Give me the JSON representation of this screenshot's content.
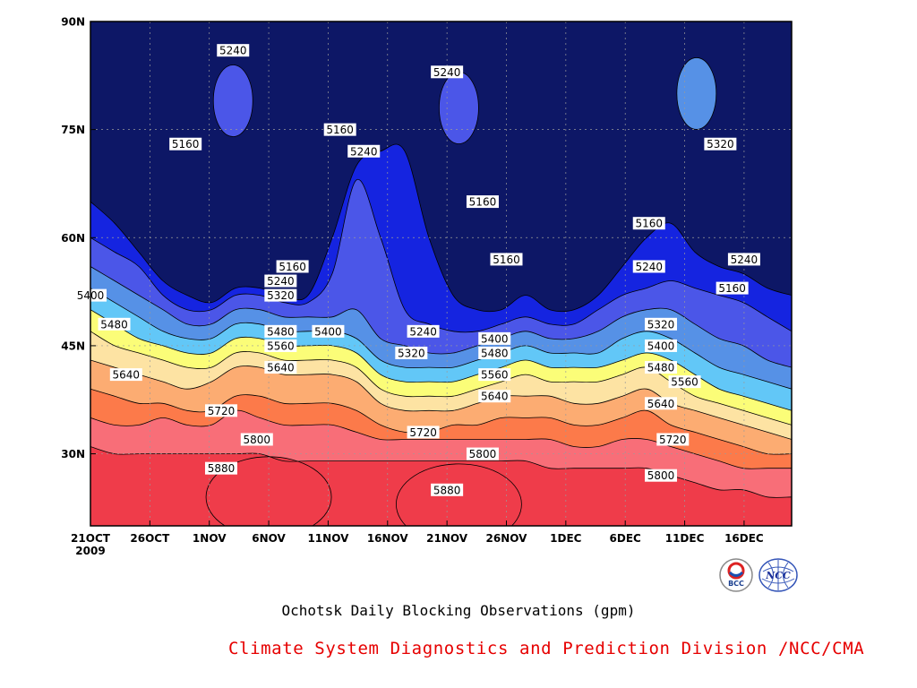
{
  "chart_data": {
    "type": "heatmap",
    "subtype": "filled-contour (time-latitude Hovmoller)",
    "title": "Ochotsk Daily Blocking Observations (gpm)",
    "x_tick_labels": [
      "21OCT",
      "26OCT",
      "1NOV",
      "6NOV",
      "11NOV",
      "16NOV",
      "21NOV",
      "26NOV",
      "1DEC",
      "6DEC",
      "11DEC",
      "16DEC"
    ],
    "x_year_label": "2009",
    "x_range": [
      "2009-10-21",
      "2009-12-19"
    ],
    "y_tick_labels": [
      "30N",
      "45N",
      "60N",
      "75N",
      "90N"
    ],
    "y_range": [
      20,
      90
    ],
    "contour_levels": [
      5160,
      5240,
      5320,
      5400,
      5480,
      5560,
      5640,
      5720,
      5800,
      5880
    ],
    "fill_colors": [
      "#0d1766",
      "#1524e0",
      "#4b56e8",
      "#5691e6",
      "#62c7f7",
      "#fbfd78",
      "#fde3a3",
      "#fcac72",
      "#fc7a4a",
      "#f86e78",
      "#ef3c4a"
    ],
    "grid": true,
    "contours": [
      {
        "level": 5160,
        "lat": [
          65,
          62,
          58,
          54,
          52,
          51,
          53,
          53,
          52,
          52,
          60,
          70,
          72,
          72,
          60,
          52,
          50,
          50,
          52,
          50,
          50,
          52,
          56,
          60,
          62,
          58,
          56,
          55,
          53,
          52
        ]
      },
      {
        "level": 5240,
        "lat": [
          60,
          58,
          56,
          52,
          50,
          50,
          52,
          52,
          51,
          51,
          55,
          68,
          60,
          50,
          48,
          47,
          47,
          48,
          49,
          48,
          48,
          50,
          52,
          53,
          54,
          53,
          52,
          51,
          49,
          47
        ]
      },
      {
        "level": 5320,
        "lat": [
          56,
          54,
          52,
          50,
          48,
          48,
          50,
          50,
          49,
          49,
          49,
          50,
          46,
          45,
          44,
          44,
          45,
          46,
          47,
          46,
          46,
          47,
          49,
          50,
          50,
          48,
          46,
          45,
          43,
          42
        ]
      },
      {
        "level": 5400,
        "lat": [
          53,
          51,
          49,
          47,
          46,
          46,
          48,
          48,
          47,
          47,
          47,
          46,
          43,
          42,
          42,
          42,
          43,
          44,
          45,
          44,
          44,
          44,
          46,
          47,
          46,
          44,
          42,
          41,
          40,
          39
        ]
      },
      {
        "level": 5480,
        "lat": [
          50,
          48,
          46,
          45,
          44,
          44,
          46,
          46,
          45,
          45,
          45,
          44,
          41,
          40,
          40,
          40,
          41,
          42,
          43,
          42,
          42,
          42,
          43,
          44,
          43,
          41,
          39,
          38,
          37,
          36
        ]
      },
      {
        "level": 5560,
        "lat": [
          47,
          45,
          44,
          43,
          42,
          42,
          44,
          44,
          43,
          43,
          43,
          42,
          39,
          38,
          38,
          38,
          39,
          40,
          41,
          40,
          40,
          40,
          41,
          42,
          40,
          38,
          37,
          36,
          35,
          34
        ]
      },
      {
        "level": 5640,
        "lat": [
          43,
          42,
          41,
          40,
          39,
          40,
          42,
          42,
          41,
          41,
          41,
          40,
          37,
          36,
          36,
          36,
          37,
          38,
          38,
          38,
          37,
          37,
          38,
          39,
          37,
          36,
          35,
          34,
          33,
          32
        ]
      },
      {
        "level": 5720,
        "lat": [
          39,
          38,
          37,
          37,
          36,
          36,
          38,
          38,
          37,
          37,
          37,
          36,
          34,
          33,
          33,
          34,
          34,
          35,
          35,
          35,
          34,
          34,
          35,
          36,
          34,
          33,
          32,
          31,
          30,
          30
        ]
      },
      {
        "level": 5800,
        "lat": [
          35,
          34,
          34,
          35,
          34,
          34,
          36,
          35,
          34,
          34,
          34,
          33,
          32,
          32,
          32,
          32,
          32,
          32,
          32,
          32,
          31,
          31,
          32,
          32,
          31,
          30,
          29,
          28,
          28,
          28
        ]
      },
      {
        "level": 5880,
        "lat": [
          31,
          30,
          30,
          30,
          30,
          30,
          30,
          30,
          29,
          29,
          29,
          29,
          29,
          29,
          29,
          29,
          29,
          29,
          29,
          28,
          28,
          28,
          28,
          28,
          27,
          26,
          25,
          25,
          24,
          24
        ]
      }
    ],
    "closed_regions": [
      {
        "label": "5240",
        "lat": 79,
        "date": "2009-11-02"
      },
      {
        "label": "5240",
        "lat": 78,
        "date": "2009-11-21"
      },
      {
        "label": "5320",
        "lat": 80,
        "date": "2009-12-11"
      },
      {
        "label": "5880",
        "lat": 24,
        "date": "2009-11-05"
      },
      {
        "label": "5880",
        "lat": 23,
        "date": "2009-11-21"
      }
    ],
    "contour_labels": [
      {
        "text": "5240",
        "date": "2009-11-02",
        "lat": 86
      },
      {
        "text": "5240",
        "date": "2009-11-20",
        "lat": 83
      },
      {
        "text": "5160",
        "date": "2009-10-29",
        "lat": 73
      },
      {
        "text": "5160",
        "date": "2009-11-11",
        "lat": 75
      },
      {
        "text": "5240",
        "date": "2009-11-13",
        "lat": 72
      },
      {
        "text": "5160",
        "date": "2009-11-23",
        "lat": 65
      },
      {
        "text": "5160",
        "date": "2009-12-07",
        "lat": 62
      },
      {
        "text": "5320",
        "date": "2009-12-13",
        "lat": 73
      },
      {
        "text": "5160",
        "date": "2009-11-25",
        "lat": 57
      },
      {
        "text": "5240",
        "date": "2009-12-07",
        "lat": 56
      },
      {
        "text": "5240",
        "date": "2009-12-15",
        "lat": 57
      },
      {
        "text": "5160",
        "date": "2009-12-14",
        "lat": 53
      },
      {
        "text": "5160",
        "date": "2009-11-07",
        "lat": 56
      },
      {
        "text": "5240",
        "date": "2009-11-06",
        "lat": 54
      },
      {
        "text": "5320",
        "date": "2009-11-06",
        "lat": 52
      },
      {
        "text": "5400",
        "date": "2009-10-21",
        "lat": 52
      },
      {
        "text": "5480",
        "date": "2009-10-23",
        "lat": 48
      },
      {
        "text": "5480",
        "date": "2009-11-06",
        "lat": 47
      },
      {
        "text": "5400",
        "date": "2009-11-10",
        "lat": 47
      },
      {
        "text": "5240",
        "date": "2009-11-18",
        "lat": 47
      },
      {
        "text": "5560",
        "date": "2009-11-06",
        "lat": 45
      },
      {
        "text": "5320",
        "date": "2009-11-17",
        "lat": 44
      },
      {
        "text": "5400",
        "date": "2009-11-24",
        "lat": 46
      },
      {
        "text": "5320",
        "date": "2009-12-08",
        "lat": 48
      },
      {
        "text": "5400",
        "date": "2009-12-08",
        "lat": 45
      },
      {
        "text": "5480",
        "date": "2009-11-24",
        "lat": 44
      },
      {
        "text": "5640",
        "date": "2009-10-24",
        "lat": 41
      },
      {
        "text": "5640",
        "date": "2009-11-06",
        "lat": 42
      },
      {
        "text": "5480",
        "date": "2009-12-08",
        "lat": 42
      },
      {
        "text": "5560",
        "date": "2009-11-24",
        "lat": 41
      },
      {
        "text": "5560",
        "date": "2009-12-10",
        "lat": 40
      },
      {
        "text": "5640",
        "date": "2009-11-24",
        "lat": 38
      },
      {
        "text": "5640",
        "date": "2009-12-08",
        "lat": 37
      },
      {
        "text": "5720",
        "date": "2009-11-01",
        "lat": 36
      },
      {
        "text": "5720",
        "date": "2009-11-18",
        "lat": 33
      },
      {
        "text": "5720",
        "date": "2009-12-09",
        "lat": 32
      },
      {
        "text": "5800",
        "date": "2009-11-04",
        "lat": 32
      },
      {
        "text": "5800",
        "date": "2009-11-23",
        "lat": 30
      },
      {
        "text": "5800",
        "date": "2009-12-08",
        "lat": 27
      },
      {
        "text": "5880",
        "date": "2009-11-01",
        "lat": 28
      },
      {
        "text": "5880",
        "date": "2009-11-20",
        "lat": 25
      }
    ]
  },
  "caption": {
    "title": "Ochotsk Daily Blocking Observations (gpm)",
    "credit": "Climate System Diagnostics and Prediction Division /NCC/CMA"
  },
  "logos": {
    "bcc_text": "BCC",
    "ncc_text": "NCC"
  }
}
